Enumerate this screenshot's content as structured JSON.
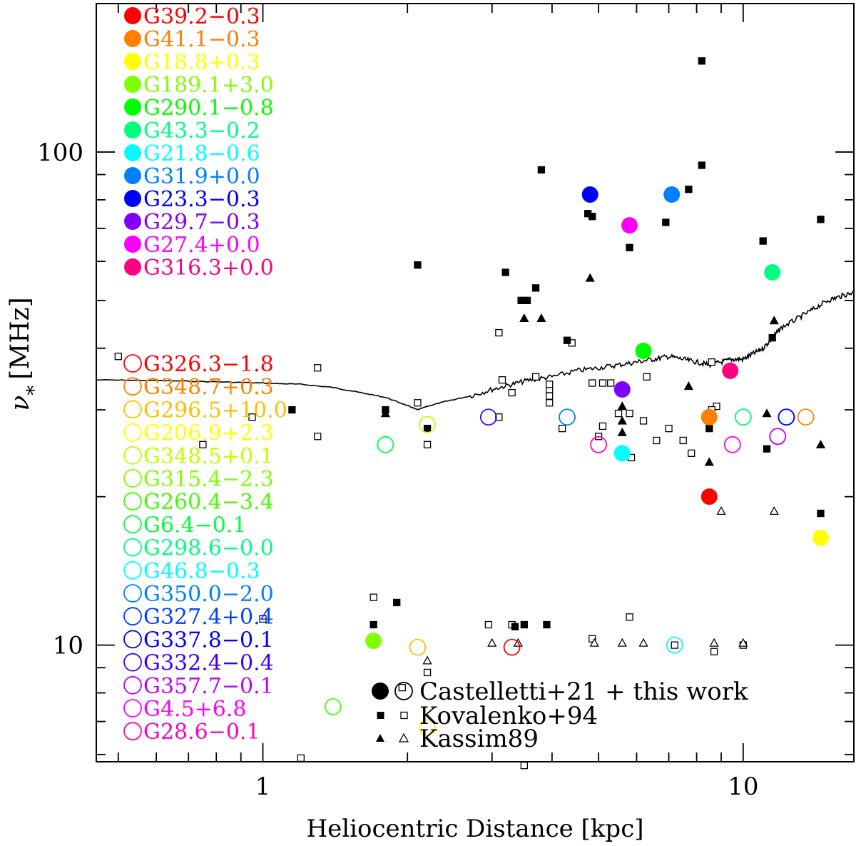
{
  "chart_data": {
    "type": "scatter",
    "title": "",
    "xlabel": "Heliocentric Distance [kpc]",
    "ylabel": "ν",
    "ylabel_subscript": "*",
    "ylabel_unit": "[MHz]",
    "x_scale": "log",
    "y_scale": "log",
    "xlim": [
      0.45,
      17
    ],
    "ylim": [
      5.8,
      200
    ],
    "x_major_ticks": [
      {
        "value": 1,
        "label": "1"
      },
      {
        "value": 10,
        "label": "10"
      }
    ],
    "y_major_ticks": [
      {
        "value": 10,
        "label": "10"
      },
      {
        "value": 100,
        "label": "100"
      }
    ],
    "legend_position": "bottom-right",
    "legend": [
      {
        "marker": "filled-open-circle",
        "label": "Castelletti+21 + this work"
      },
      {
        "marker": "filled-open-square",
        "label": "Kovalenko+94"
      },
      {
        "marker": "filled-open-triangle",
        "label": "Kassim89"
      }
    ],
    "filled_sources": [
      {
        "name": "G39.2−0.3",
        "color": "#ff0000",
        "x": 8.5,
        "y": 20
      },
      {
        "name": "G41.1−0.3",
        "color": "#ff7f00",
        "x": 8.5,
        "y": 29
      },
      {
        "name": "G18.8+0.3",
        "color": "#ffff00",
        "x": 14.5,
        "y": 16.5
      },
      {
        "name": "G189.1+3.0",
        "color": "#80ff00",
        "x": 1.7,
        "y": 10.2
      },
      {
        "name": "G290.1−0.8",
        "color": "#00ff00",
        "x": 6.2,
        "y": 39.5
      },
      {
        "name": "G43.3−0.2",
        "color": "#00ff80",
        "x": 11.5,
        "y": 57
      },
      {
        "name": "G21.8−0.6",
        "color": "#00ffff",
        "x": 5.6,
        "y": 24.5
      },
      {
        "name": "G31.9+0.0",
        "color": "#0080ff",
        "x": 7.1,
        "y": 82
      },
      {
        "name": "G23.3−0.3",
        "color": "#0000ff",
        "x": 4.8,
        "y": 82
      },
      {
        "name": "G29.7−0.3",
        "color": "#8000ff",
        "x": 5.6,
        "y": 33
      },
      {
        "name": "G27.4+0.0",
        "color": "#ff00ff",
        "x": 5.8,
        "y": 71
      },
      {
        "name": "G316.3+0.0",
        "color": "#ff0080",
        "x": 9.4,
        "y": 36
      }
    ],
    "open_sources": [
      {
        "name": "G326.3−1.8",
        "color": "#ff0000",
        "x": 3.3,
        "y": 9.9
      },
      {
        "name": "G348.7+0.3",
        "color": "#ff7f00",
        "x": 13.5,
        "y": 29
      },
      {
        "name": "G296.5+10.0",
        "color": "#ffbf00",
        "x": 2.1,
        "y": 9.9
      },
      {
        "name": "G206.9+2.3",
        "color": "#ffff00",
        "x": 2.2,
        "y": 6.8
      },
      {
        "name": "G348.5+0.1",
        "color": "#bfff00",
        "x": 2.2,
        "y": 28
      },
      {
        "name": "G315.4−2.3",
        "color": "#80ff00",
        "x": 10.0,
        "y": 29
      },
      {
        "name": "G260.4−3.4",
        "color": "#40ff00",
        "x": 1.4,
        "y": 7.5
      },
      {
        "name": "G6.4−0.1",
        "color": "#00ff40",
        "x": 1.8,
        "y": 25.5
      },
      {
        "name": "G298.6−0.0",
        "color": "#00ff80",
        "x": 10.0,
        "y": 29
      },
      {
        "name": "G46.8−0.3",
        "color": "#00ffff",
        "x": 7.2,
        "y": 10.0
      },
      {
        "name": "G350.0−2.0",
        "color": "#0080ff",
        "x": 4.3,
        "y": 29
      },
      {
        "name": "G327.4+0.4",
        "color": "#0040ff",
        "x": 12.3,
        "y": 29
      },
      {
        "name": "G337.8−0.1",
        "color": "#0000ff",
        "x": 12.3,
        "y": 29
      },
      {
        "name": "G332.4−0.4",
        "color": "#4000ff",
        "x": 2.95,
        "y": 29
      },
      {
        "name": "G357.7−0.1",
        "color": "#bf00ff",
        "x": 11.8,
        "y": 26.5
      },
      {
        "name": "G4.5+6.8",
        "color": "#ff00ff",
        "x": 9.5,
        "y": 25.5
      },
      {
        "name": "G28.6−0.1",
        "color": "#ff00bf",
        "x": 5.0,
        "y": 25.5
      }
    ],
    "kovalenko_filled": [
      {
        "x": 1.15,
        "y": 30
      },
      {
        "x": 1.8,
        "y": 30
      },
      {
        "x": 2.1,
        "y": 59
      },
      {
        "x": 2.2,
        "y": 27.5
      },
      {
        "x": 1.7,
        "y": 11
      },
      {
        "x": 1.9,
        "y": 12.2
      },
      {
        "x": 3.2,
        "y": 57
      },
      {
        "x": 3.45,
        "y": 50
      },
      {
        "x": 3.55,
        "y": 50
      },
      {
        "x": 3.7,
        "y": 53
      },
      {
        "x": 3.8,
        "y": 92
      },
      {
        "x": 4.3,
        "y": 41.5
      },
      {
        "x": 4.75,
        "y": 75
      },
      {
        "x": 4.85,
        "y": 74
      },
      {
        "x": 5.8,
        "y": 64
      },
      {
        "x": 6.9,
        "y": 72
      },
      {
        "x": 7.7,
        "y": 84
      },
      {
        "x": 8.2,
        "y": 94
      },
      {
        "x": 8.2,
        "y": 153
      },
      {
        "x": 8.5,
        "y": 27.5
      },
      {
        "x": 11.0,
        "y": 66
      },
      {
        "x": 11.2,
        "y": 25
      },
      {
        "x": 11.5,
        "y": 42
      },
      {
        "x": 14.5,
        "y": 73
      },
      {
        "x": 14.5,
        "y": 18.5
      },
      {
        "x": 3.35,
        "y": 10.9
      },
      {
        "x": 3.9,
        "y": 11
      },
      {
        "x": 3.5,
        "y": 11
      }
    ],
    "kovalenko_open": [
      {
        "x": 0.5,
        "y": 38.5
      },
      {
        "x": 0.95,
        "y": 29
      },
      {
        "x": 0.75,
        "y": 25.5
      },
      {
        "x": 1.0,
        "y": 11.3
      },
      {
        "x": 1.2,
        "y": 5.9
      },
      {
        "x": 1.3,
        "y": 36.5
      },
      {
        "x": 1.3,
        "y": 26.5
      },
      {
        "x": 1.7,
        "y": 12.5
      },
      {
        "x": 1.95,
        "y": 8.2
      },
      {
        "x": 2.1,
        "y": 31
      },
      {
        "x": 2.2,
        "y": 25.5
      },
      {
        "x": 2.2,
        "y": 8.8
      },
      {
        "x": 2.95,
        "y": 11
      },
      {
        "x": 3.3,
        "y": 11
      },
      {
        "x": 3.1,
        "y": 29
      },
      {
        "x": 3.1,
        "y": 43
      },
      {
        "x": 3.15,
        "y": 34.5
      },
      {
        "x": 3.3,
        "y": 32.5
      },
      {
        "x": 3.5,
        "y": 5.7
      },
      {
        "x": 3.7,
        "y": 35
      },
      {
        "x": 3.95,
        "y": 33
      },
      {
        "x": 3.95,
        "y": 32
      },
      {
        "x": 3.95,
        "y": 31
      },
      {
        "x": 3.95,
        "y": 33.8
      },
      {
        "x": 4.2,
        "y": 27.5
      },
      {
        "x": 4.4,
        "y": 41
      },
      {
        "x": 4.85,
        "y": 10.3
      },
      {
        "x": 4.85,
        "y": 34
      },
      {
        "x": 5.0,
        "y": 26.5
      },
      {
        "x": 5.1,
        "y": 27.8
      },
      {
        "x": 5.1,
        "y": 34
      },
      {
        "x": 5.3,
        "y": 34
      },
      {
        "x": 5.5,
        "y": 29.5
      },
      {
        "x": 5.8,
        "y": 29.5
      },
      {
        "x": 5.8,
        "y": 11.4
      },
      {
        "x": 5.85,
        "y": 24
      },
      {
        "x": 6.2,
        "y": 28.5
      },
      {
        "x": 6.3,
        "y": 35
      },
      {
        "x": 6.6,
        "y": 26
      },
      {
        "x": 7.0,
        "y": 27.5
      },
      {
        "x": 7.2,
        "y": 10
      },
      {
        "x": 7.5,
        "y": 26
      },
      {
        "x": 7.8,
        "y": 24.5
      },
      {
        "x": 8.6,
        "y": 37.5
      },
      {
        "x": 8.7,
        "y": 9.7
      },
      {
        "x": 8.8,
        "y": 30.5
      },
      {
        "x": 8.6,
        "y": 30
      },
      {
        "x": 10.0,
        "y": 10
      }
    ],
    "kassim_filled": [
      {
        "x": 1.8,
        "y": 29.5
      },
      {
        "x": 3.5,
        "y": 46
      },
      {
        "x": 3.8,
        "y": 46
      },
      {
        "x": 4.8,
        "y": 55.5
      },
      {
        "x": 5.6,
        "y": 30.5
      },
      {
        "x": 5.6,
        "y": 28.5
      },
      {
        "x": 5.6,
        "y": 27
      },
      {
        "x": 7.7,
        "y": 33.5
      },
      {
        "x": 8.5,
        "y": 23.5
      },
      {
        "x": 11.2,
        "y": 29.5
      },
      {
        "x": 11.6,
        "y": 45.5
      },
      {
        "x": 14.5,
        "y": 25.5
      },
      {
        "x": 8.6,
        "y": 28.8
      }
    ],
    "kassim_open": [
      {
        "x": 2.2,
        "y": 9.3
      },
      {
        "x": 3.0,
        "y": 10.1
      },
      {
        "x": 3.4,
        "y": 10.1
      },
      {
        "x": 4.9,
        "y": 10.1
      },
      {
        "x": 5.6,
        "y": 10.1
      },
      {
        "x": 6.2,
        "y": 10.1
      },
      {
        "x": 8.7,
        "y": 10.1
      },
      {
        "x": 10.0,
        "y": 10.1
      },
      {
        "x": 9.0,
        "y": 18.7
      },
      {
        "x": 11.6,
        "y": 18.7
      }
    ],
    "sensitivity_curve": [
      [
        0.45,
        34.5
      ],
      [
        0.6,
        34.4
      ],
      [
        0.8,
        34.2
      ],
      [
        1.0,
        34.0
      ],
      [
        1.2,
        33.8
      ],
      [
        1.4,
        33.3
      ],
      [
        1.6,
        32.5
      ],
      [
        1.8,
        31.8
      ],
      [
        2.0,
        30.6
      ],
      [
        2.1,
        30.0
      ],
      [
        2.2,
        30.5
      ],
      [
        2.4,
        31.2
      ],
      [
        2.7,
        32.0
      ],
      [
        3.0,
        33.0
      ],
      [
        3.3,
        33.8
      ],
      [
        3.6,
        34.5
      ],
      [
        4.0,
        35.0
      ],
      [
        4.5,
        36.0
      ],
      [
        5.0,
        36.5
      ],
      [
        5.5,
        37.0
      ],
      [
        6.0,
        37.5
      ],
      [
        6.5,
        38.0
      ],
      [
        7.0,
        38.5
      ],
      [
        7.5,
        38.0
      ],
      [
        8.0,
        37.5
      ],
      [
        8.5,
        37.0
      ],
      [
        9.0,
        37.5
      ],
      [
        9.5,
        38.0
      ],
      [
        10.0,
        38.0
      ],
      [
        10.5,
        39.0
      ],
      [
        11.0,
        40.0
      ],
      [
        11.5,
        42.0
      ],
      [
        12.0,
        44.0
      ],
      [
        13.0,
        46.0
      ],
      [
        14.0,
        48.0
      ],
      [
        15.0,
        50.0
      ],
      [
        16.0,
        51.0
      ],
      [
        17.0,
        52.0
      ]
    ]
  }
}
